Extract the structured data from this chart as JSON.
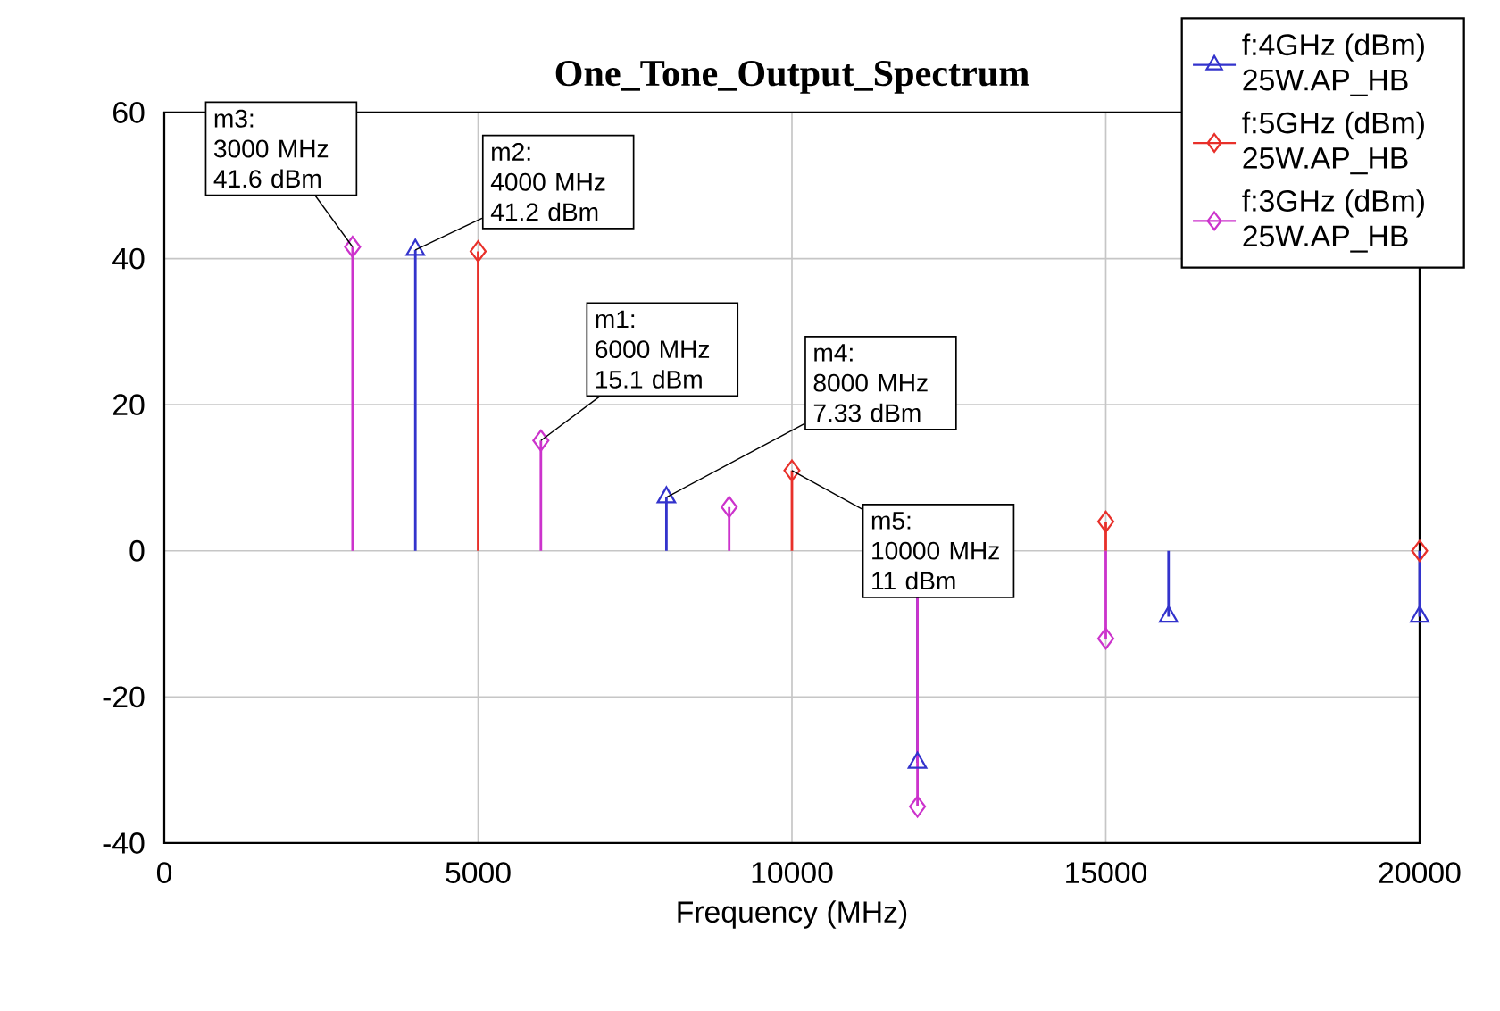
{
  "chart_data": {
    "type": "lollipop",
    "title": "One_Tone_Output_Spectrum",
    "xlabel": "Frequency (MHz)",
    "xlim": [
      0,
      20000
    ],
    "ylim": [
      -40,
      60
    ],
    "xticks": [
      0,
      5000,
      10000,
      15000,
      20000
    ],
    "yticks": [
      -40,
      -20,
      0,
      20,
      40,
      60
    ],
    "grid": true,
    "legend": "top right",
    "series": [
      {
        "name": "f:4GHz (dBm) 25W.AP_HB",
        "color": "#3333cc",
        "marker": "triangle",
        "x": [
          4000,
          8000,
          12000,
          16000,
          20000
        ],
        "values": [
          41.2,
          7.33,
          -29,
          -9,
          -9
        ]
      },
      {
        "name": "f:5GHz (dBm) 25W.AP_HB",
        "color": "#e8302a",
        "marker": "diamond",
        "x": [
          5000,
          10000,
          15000,
          20000
        ],
        "values": [
          41,
          11,
          4,
          0
        ]
      },
      {
        "name": "f:3GHz (dBm) 25W.AP_HB",
        "color": "#cc33cc",
        "marker": "diamond",
        "x": [
          3000,
          6000,
          9000,
          12000,
          15000
        ],
        "values": [
          41.6,
          15.1,
          6,
          -35,
          -12
        ]
      }
    ],
    "annotations": [
      {
        "text": "m3:\n3000 MHz\n41.6 dBm",
        "x": 3000,
        "y": 41.6
      },
      {
        "text": "m2:\n4000 MHz\n41.2 dBm",
        "x": 4000,
        "y": 41.2
      },
      {
        "text": "m1:\n6000 MHz\n15.1 dBm",
        "x": 6000,
        "y": 15.1
      },
      {
        "text": "m4:\n8000 MHz\n7.33 dBm",
        "x": 8000,
        "y": 7.33
      },
      {
        "text": "m5:\n10000 MHz\n11 dBm",
        "x": 10000,
        "y": 11
      }
    ]
  }
}
